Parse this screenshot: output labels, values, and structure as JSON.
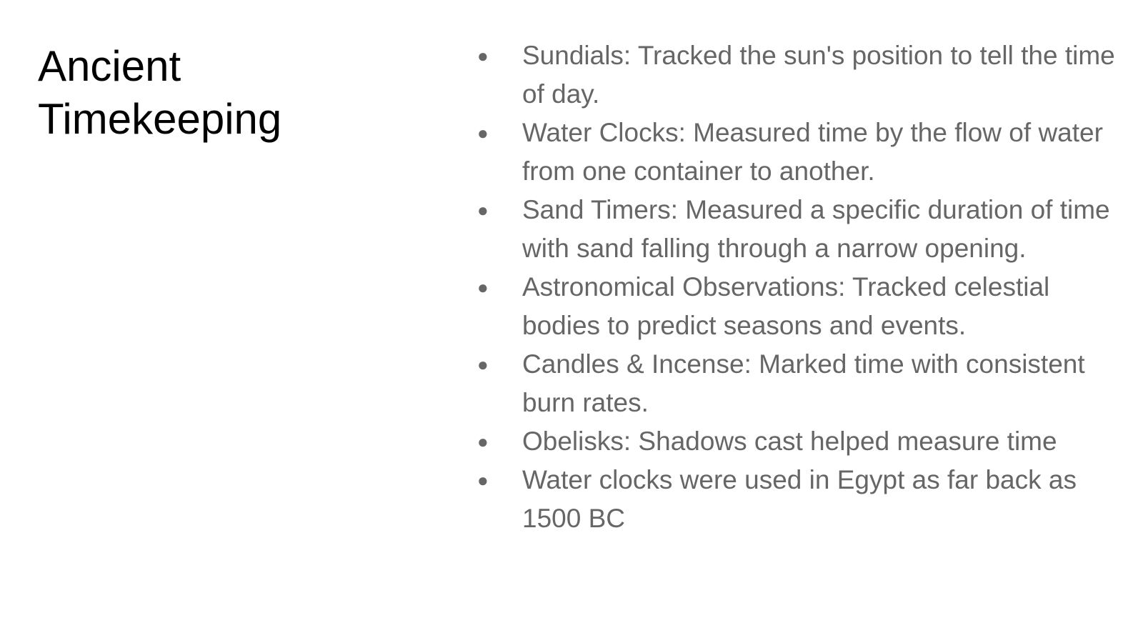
{
  "slide": {
    "title_lines": [
      "Ancient",
      "Timekeeping"
    ],
    "bullet_symbol": "●",
    "bullets": [
      "Sundials: Tracked the sun's position to tell the time of day.",
      "Water Clocks: Measured time by the flow of water from one container to another.",
      "Sand Timers: Measured a specific duration of time with sand falling through a narrow opening.",
      "Astronomical Observations: Tracked celestial bodies to predict seasons and events.",
      "Candles & Incense: Marked time with consistent burn rates.",
      "Obelisks: Shadows cast helped measure time",
      "Water clocks were used in Egypt as far back as 1500 BC"
    ]
  },
  "colors": {
    "title": "#000000",
    "body_text": "#666666",
    "background": "#ffffff"
  }
}
